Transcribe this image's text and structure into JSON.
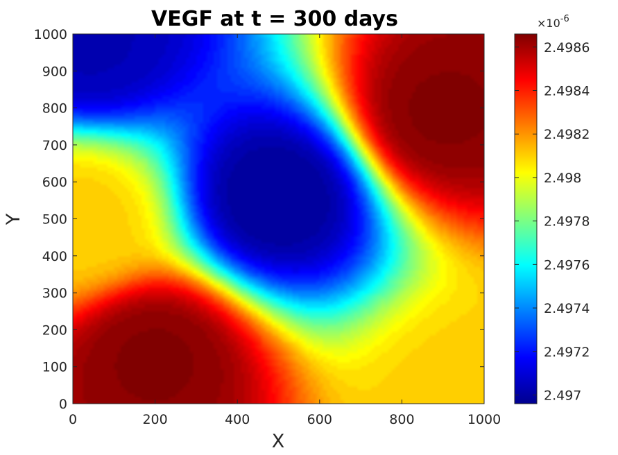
{
  "chart_data": {
    "type": "heatmap",
    "title": "VEGF at t = 300 days",
    "xlabel": "X",
    "ylabel": "Y",
    "xlim": [
      0,
      1000
    ],
    "ylim": [
      0,
      1000
    ],
    "xticks": [
      "0",
      "200",
      "400",
      "600",
      "800",
      "1000"
    ],
    "yticks": [
      "0",
      "100",
      "200",
      "300",
      "400",
      "500",
      "600",
      "700",
      "800",
      "900",
      "1000"
    ],
    "colormap": "jet",
    "colorbar": {
      "range": [
        2.49696,
        2.49866
      ],
      "multiplier_label": "×10",
      "multiplier_exponent": "-6",
      "ticks": [
        "2.497",
        "2.4972",
        "2.4974",
        "2.4976",
        "2.4978",
        "2.498",
        "2.4982",
        "2.4984",
        "2.4986"
      ]
    },
    "field_features": [
      {
        "x": 500,
        "y": 560,
        "value": 2.497,
        "kind": "minimum"
      },
      {
        "x": 40,
        "y": 980,
        "value": 2.49705,
        "kind": "minimum"
      },
      {
        "x": 900,
        "y": 790,
        "value": 2.49865,
        "kind": "maximum"
      },
      {
        "x": 200,
        "y": 120,
        "value": 2.49865,
        "kind": "maximum"
      },
      {
        "x": 980,
        "y": 20,
        "value": 2.4981,
        "kind": "corner"
      },
      {
        "x": 10,
        "y": 500,
        "value": 2.4981,
        "kind": "edge"
      }
    ]
  }
}
